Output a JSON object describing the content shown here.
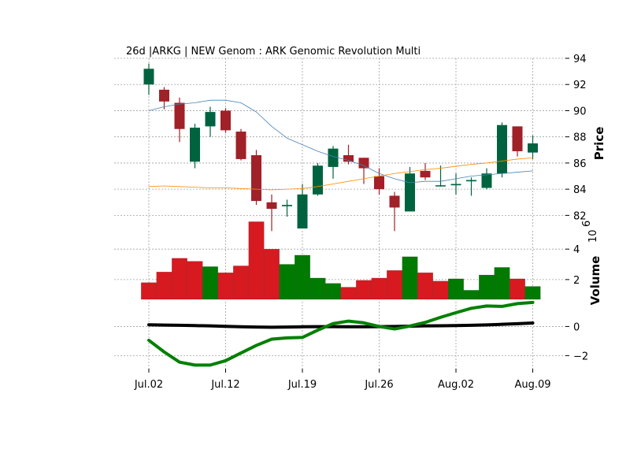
{
  "chart_data": {
    "type": "candlestick",
    "title": "26d |ARKG | NEW Genom : ARK Genomic Revolution Multi",
    "colors": {
      "up": "#006340",
      "down": "#a02128",
      "vol_up": "#007a00",
      "vol_down": "#d71920",
      "ma_fast": "#4682b4",
      "ma_slow": "#ff8c00",
      "osc_a": "#000000",
      "osc_b": "#008000"
    },
    "price_panel": {
      "ylabel": "Price",
      "ylim": [
        81,
        94
      ],
      "yticks": [
        "82",
        "84",
        "86",
        "88",
        "90",
        "92",
        "94"
      ],
      "candles": [
        {
          "o": 92.0,
          "h": 93.6,
          "l": 91.2,
          "c": 93.2
        },
        {
          "o": 91.6,
          "h": 91.8,
          "l": 90.1,
          "c": 90.7
        },
        {
          "o": 90.6,
          "h": 91.0,
          "l": 87.6,
          "c": 88.6
        },
        {
          "o": 86.1,
          "h": 89.0,
          "l": 85.6,
          "c": 88.7
        },
        {
          "o": 88.8,
          "h": 90.3,
          "l": 88.0,
          "c": 89.9
        },
        {
          "o": 90.0,
          "h": 90.2,
          "l": 88.3,
          "c": 88.5
        },
        {
          "o": 88.4,
          "h": 88.6,
          "l": 86.2,
          "c": 86.3
        },
        {
          "o": 86.6,
          "h": 87.0,
          "l": 82.8,
          "c": 83.1
        },
        {
          "o": 83.0,
          "h": 83.6,
          "l": 80.8,
          "c": 82.5
        },
        {
          "o": 82.7,
          "h": 83.2,
          "l": 81.9,
          "c": 82.8
        },
        {
          "o": 81.0,
          "h": 84.4,
          "l": 81.0,
          "c": 83.6
        },
        {
          "o": 83.6,
          "h": 86.0,
          "l": 83.5,
          "c": 85.8
        },
        {
          "o": 85.7,
          "h": 87.3,
          "l": 84.8,
          "c": 87.1
        },
        {
          "o": 86.6,
          "h": 87.4,
          "l": 85.9,
          "c": 86.1
        },
        {
          "o": 86.4,
          "h": 86.4,
          "l": 84.4,
          "c": 85.6
        },
        {
          "o": 85.0,
          "h": 85.6,
          "l": 83.6,
          "c": 84.0
        },
        {
          "o": 83.5,
          "h": 83.8,
          "l": 80.8,
          "c": 82.6
        },
        {
          "o": 82.3,
          "h": 85.7,
          "l": 82.3,
          "c": 85.2
        },
        {
          "o": 85.4,
          "h": 86.0,
          "l": 84.7,
          "c": 84.9
        },
        {
          "o": 84.3,
          "h": 85.8,
          "l": 84.2,
          "c": 84.3
        },
        {
          "o": 84.3,
          "h": 85.2,
          "l": 83.6,
          "c": 84.4
        },
        {
          "o": 84.6,
          "h": 84.9,
          "l": 83.5,
          "c": 84.7
        },
        {
          "o": 84.1,
          "h": 85.6,
          "l": 84.0,
          "c": 85.2
        },
        {
          "o": 85.2,
          "h": 89.1,
          "l": 84.9,
          "c": 88.9
        },
        {
          "o": 88.8,
          "h": 88.8,
          "l": 86.5,
          "c": 86.9
        },
        {
          "o": 86.8,
          "h": 88.1,
          "l": 86.3,
          "c": 87.5
        }
      ],
      "ma_fast": [
        90.0,
        90.3,
        90.5,
        90.6,
        90.8,
        90.8,
        90.6,
        89.9,
        88.8,
        87.9,
        87.4,
        86.9,
        86.5,
        86.2,
        85.8,
        85.2,
        84.8,
        84.5,
        84.6,
        84.6,
        84.8,
        85.0,
        85.1,
        85.2,
        85.3,
        85.4
      ],
      "ma_slow": [
        84.2,
        84.25,
        84.2,
        84.15,
        84.1,
        84.1,
        84.05,
        84.0,
        83.95,
        84.0,
        84.05,
        84.2,
        84.4,
        84.6,
        84.8,
        85.0,
        85.2,
        85.35,
        85.5,
        85.6,
        85.75,
        85.9,
        86.0,
        86.15,
        86.3,
        86.4
      ]
    },
    "volume_panel": {
      "ylabel": "Volume",
      "scale_label": "10",
      "scale_exp": "6",
      "ylim": [
        0.7,
        5.2
      ],
      "yticks": [
        "2",
        "4"
      ],
      "values": [
        1.8,
        2.5,
        3.4,
        3.2,
        2.85,
        2.45,
        2.9,
        5.8,
        4.0,
        3.0,
        3.6,
        2.1,
        1.75,
        1.5,
        1.95,
        2.1,
        2.6,
        3.5,
        2.45,
        1.9,
        2.05,
        1.3,
        2.3,
        2.8,
        2.05,
        1.55
      ],
      "up": [
        false,
        false,
        false,
        false,
        true,
        false,
        false,
        false,
        false,
        true,
        true,
        true,
        true,
        false,
        false,
        false,
        false,
        true,
        false,
        false,
        true,
        true,
        true,
        true,
        false,
        true
      ]
    },
    "osc_panel": {
      "ylim": [
        -2.9,
        1.7
      ],
      "yticks": [
        "0",
        "−2"
      ],
      "yvalues": [
        0,
        -2
      ],
      "signal": [
        0.12,
        0.1,
        0.08,
        0.06,
        0.04,
        0.01,
        -0.02,
        -0.04,
        -0.05,
        -0.04,
        -0.02,
        -0.01,
        -0.01,
        -0.02,
        -0.02,
        -0.01,
        0.0,
        0.02,
        0.04,
        0.05,
        0.06,
        0.08,
        0.11,
        0.15,
        0.19,
        0.24
      ],
      "macd": [
        -0.95,
        -1.75,
        -2.45,
        -2.65,
        -2.65,
        -2.35,
        -1.82,
        -1.3,
        -0.87,
        -0.78,
        -0.75,
        -0.25,
        0.2,
        0.37,
        0.25,
        0.0,
        -0.17,
        0.03,
        0.28,
        0.63,
        0.95,
        1.25,
        1.41,
        1.38,
        1.57,
        1.65
      ]
    },
    "xticks": [
      {
        "index": 0,
        "label": "Jul.02"
      },
      {
        "index": 5,
        "label": "Jul.12"
      },
      {
        "index": 10,
        "label": "Jul.19"
      },
      {
        "index": 15,
        "label": "Jul.26"
      },
      {
        "index": 20,
        "label": "Aug.02"
      },
      {
        "index": 25,
        "label": "Aug.09"
      }
    ],
    "grid": true
  }
}
